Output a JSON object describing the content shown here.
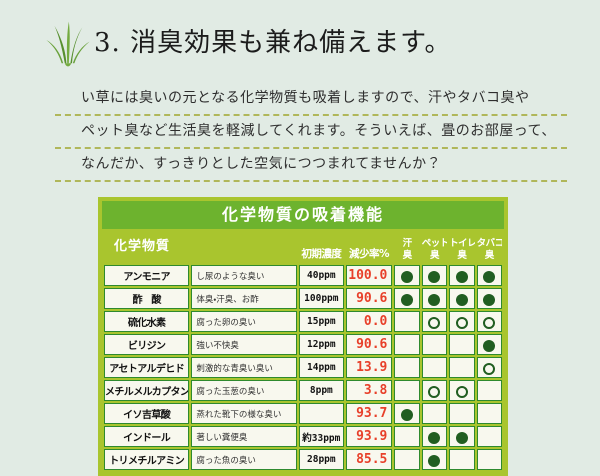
{
  "header": {
    "title": "3. 消臭効果も兼ね備えます。"
  },
  "intro": {
    "lines": [
      "い草には臭いの元となる化学物質も吸着しますので、汗やタバコ臭や",
      "ペット臭など生活臭を軽減してくれます。そういえば、畳のお部屋って、",
      "なんだか、すっきりとした空気につつまれてませんか？"
    ]
  },
  "table": {
    "title": "化学物質の吸着機能",
    "substance_header": "化学物質",
    "col_headers": {
      "initial": "初期濃度",
      "reduction": "減少率%"
    },
    "odor_headers": [
      {
        "top": "汗",
        "bottom": "臭"
      },
      {
        "top": "ペット",
        "bottom": "臭"
      },
      {
        "top": "トイレ",
        "bottom": "臭"
      },
      {
        "top": "タバコ",
        "bottom": "臭"
      }
    ],
    "rows": [
      {
        "name": "アンモニア",
        "desc": "し尿のような臭い",
        "initial": "40ppm",
        "rate": "100.0",
        "dots": [
          "filled",
          "filled",
          "filled",
          "filled"
        ]
      },
      {
        "name": "酢　酸",
        "desc": "体臭・汗臭、お酢",
        "initial": "100ppm",
        "rate": "90.6",
        "dots": [
          "filled",
          "filled",
          "filled",
          "filled"
        ]
      },
      {
        "name": "硫化水素",
        "desc": "腐った卵の臭い",
        "initial": "15ppm",
        "rate": "0.0",
        "dots": [
          "none",
          "open",
          "open",
          "open"
        ]
      },
      {
        "name": "ビリジン",
        "desc": "強い不快臭",
        "initial": "12ppm",
        "rate": "90.6",
        "dots": [
          "none",
          "none",
          "none",
          "filled"
        ]
      },
      {
        "name": "アセトアルデヒド",
        "desc": "刺激的な青臭い臭い",
        "initial": "14ppm",
        "rate": "13.9",
        "dots": [
          "none",
          "none",
          "none",
          "open"
        ]
      },
      {
        "name": "メチルメルカプタン",
        "desc": "腐った玉葱の臭い",
        "initial": "8ppm",
        "rate": "3.8",
        "dots": [
          "none",
          "open",
          "open",
          "none"
        ]
      },
      {
        "name": "イソ吉草酸",
        "desc": "蒸れた靴下の様な臭い",
        "initial": "",
        "rate": "93.7",
        "dots": [
          "filled",
          "none",
          "none",
          "none"
        ]
      },
      {
        "name": "インドール",
        "desc": "著しい糞便臭",
        "initial": "約33ppm",
        "rate": "93.9",
        "dots": [
          "none",
          "filled",
          "filled",
          "none"
        ]
      },
      {
        "name": "トリメチルアミン",
        "desc": "腐った魚の臭い",
        "initial": "28ppm",
        "rate": "85.5",
        "dots": [
          "none",
          "filled",
          "none",
          "none"
        ]
      }
    ]
  },
  "colors": {
    "page_bg": "#e1ebe4",
    "table_bg": "#a9c52e",
    "banner_bg": "#6db32e",
    "cell_bg": "#f8f8ee",
    "cell_border": "#2e8a2e",
    "rate_red": "#e8402a",
    "dot_green": "#215e21",
    "dash_olive": "#b0b75a",
    "grass_green": "#74ab40"
  }
}
